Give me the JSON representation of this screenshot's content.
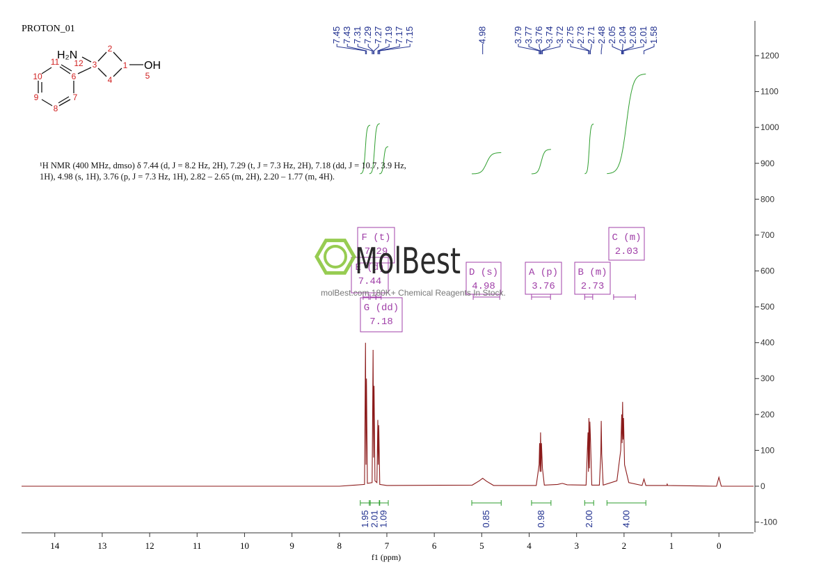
{
  "chart_data": {
    "type": "nmr",
    "title": "PROTON_01",
    "description": "¹H NMR (400 MHz, dmso) δ 7.44 (d, J = 8.2 Hz, 2H), 7.29 (t, J = 7.3 Hz, 2H), 7.18 (dd, J = 10.7, 3.9 Hz, 1H), 4.98 (s, 1H), 3.76 (p, J = 7.3 Hz, 1H), 2.82 – 2.65 (m, 2H), 2.20 – 1.77 (m, 4H).",
    "x_label": "f1 (ppm)",
    "color": "#8b1a1a",
    "xlim": [
      14.7,
      -0.73
    ],
    "xticks": [
      14,
      13,
      12,
      11,
      10,
      9,
      8,
      7,
      6,
      5,
      4,
      3,
      2,
      1,
      0
    ],
    "ylim": [
      -128,
      1297
    ],
    "yticks": [
      -100,
      0,
      100,
      200,
      300,
      400,
      500,
      600,
      700,
      800,
      900,
      1000,
      1100,
      1200
    ],
    "x": [
      14.7,
      8.0,
      7.47,
      7.45,
      7.44,
      7.43,
      7.41,
      7.31,
      7.29,
      7.28,
      7.27,
      7.25,
      7.21,
      7.19,
      7.18,
      7.17,
      7.15,
      7.0,
      5.2,
      5.05,
      4.98,
      4.9,
      4.75,
      3.85,
      3.79,
      3.78,
      3.77,
      3.76,
      3.75,
      3.74,
      3.72,
      3.68,
      3.4,
      3.3,
      3.2,
      2.8,
      2.76,
      2.75,
      2.74,
      2.73,
      2.72,
      2.71,
      2.68,
      2.52,
      2.49,
      2.48,
      2.47,
      2.44,
      2.15,
      2.07,
      2.05,
      2.04,
      2.03,
      2.02,
      2.01,
      1.99,
      1.9,
      1.62,
      1.58,
      1.54,
      1.1,
      1.09,
      1.08,
      0.05,
      0.0,
      -0.05,
      -0.73
    ],
    "values": [
      0,
      0,
      5,
      400,
      60,
      300,
      8,
      10,
      380,
      80,
      280,
      15,
      10,
      185,
      60,
      170,
      5,
      2,
      3,
      15,
      22,
      14,
      2,
      2,
      60,
      120,
      40,
      150,
      40,
      120,
      50,
      3,
      5,
      8,
      4,
      3,
      150,
      40,
      190,
      50,
      180,
      140,
      3,
      3,
      90,
      182,
      90,
      3,
      15,
      100,
      200,
      120,
      235,
      130,
      190,
      60,
      10,
      2,
      20,
      2,
      2,
      6,
      2,
      0,
      25,
      0,
      0
    ],
    "peak_labels": [
      7.45,
      7.43,
      7.31,
      7.29,
      7.27,
      7.19,
      7.17,
      7.15,
      4.98,
      3.79,
      3.77,
      3.76,
      3.74,
      3.72,
      2.75,
      2.73,
      2.71,
      2.48,
      2.05,
      2.04,
      2.03,
      2.01,
      1.58
    ],
    "integrals": [
      {
        "range": [
          7.56,
          7.35
        ],
        "value": 1.95,
        "label": "1.95"
      },
      {
        "range": [
          7.37,
          7.15
        ],
        "value": 2.01,
        "label": "2.01"
      },
      {
        "range": [
          7.16,
          6.97
        ],
        "value": 1.09,
        "label": "1.09"
      },
      {
        "range": [
          5.21,
          4.59
        ],
        "value": 0.85,
        "label": "0.85"
      },
      {
        "range": [
          3.95,
          3.54
        ],
        "value": 0.98,
        "label": "0.98"
      },
      {
        "range": [
          2.83,
          2.64
        ],
        "value": 2.0,
        "label": "2.00"
      },
      {
        "range": [
          2.36,
          1.54
        ],
        "value": 4.0,
        "label": "4.00"
      }
    ],
    "multiplets": [
      {
        "label": "F (t)",
        "shift": 7.29,
        "range": [
          7.35,
          7.23
        ]
      },
      {
        "label": "E (d)",
        "shift": 7.44,
        "range": [
          7.5,
          7.38
        ]
      },
      {
        "label": "G (dd)",
        "shift": 7.18,
        "range": [
          7.23,
          7.12
        ]
      },
      {
        "label": "D (s)",
        "shift": 4.98,
        "range": [
          5.18,
          4.62
        ]
      },
      {
        "label": "A (p)",
        "shift": 3.76,
        "range": [
          3.95,
          3.55
        ]
      },
      {
        "label": "B (m)",
        "shift": 2.73,
        "range": [
          2.83,
          2.66
        ]
      },
      {
        "label": "C (m)",
        "shift": 2.03,
        "range": [
          2.22,
          1.76
        ]
      }
    ],
    "structure": {
      "groups": [
        "H₂N",
        "OH"
      ],
      "atom_numbers": [
        1,
        2,
        3,
        4,
        5,
        6,
        7,
        8,
        9,
        10,
        11,
        12
      ]
    },
    "watermark": {
      "brand": "MolBest",
      "tagline": "molBest.com 180K+ Chemical Reagents In Stock."
    }
  }
}
